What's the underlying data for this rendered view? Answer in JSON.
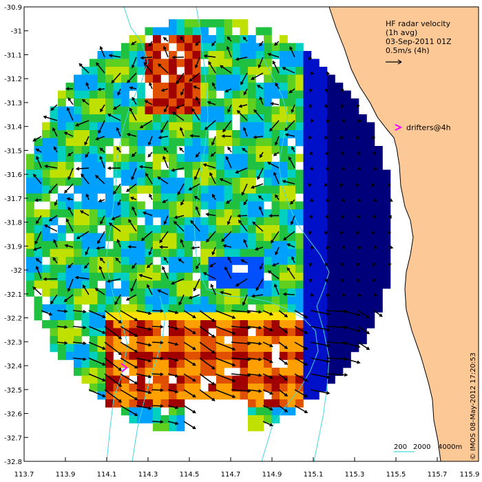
{
  "title_block": {
    "line1": "HF radar velocity",
    "line2": "(1h avg)",
    "line3": "03-Sep-2011 01Z",
    "line4": "0.5m/s (4h)"
  },
  "drifters_label": "drifters@4h",
  "depth_legend": {
    "label_200": "200",
    "label_2000": "2000",
    "label_4000": "4000m"
  },
  "credit": "© IMOS 08-May-2012 17:20:53",
  "axes": {
    "x_ticks": [
      "113.7",
      "113.9",
      "114.1",
      "114.3",
      "114.5",
      "114.7",
      "114.9",
      "115.1",
      "115.3",
      "115.5",
      "115.7",
      "115.9"
    ],
    "y_ticks": [
      "-30.9",
      "-31",
      "-31.1",
      "-31.2",
      "-31.3",
      "-31.4",
      "-31.5",
      "-31.6",
      "-31.7",
      "-31.8",
      "-31.9",
      "-32",
      "-32.1",
      "-32.2",
      "-32.3",
      "-32.4",
      "-32.5",
      "-32.6",
      "-32.7",
      "-32.8"
    ]
  },
  "colors": {
    "land": "#fcc896",
    "coast": "#000000",
    "bathymetry": "#40d8e0",
    "drifter": "#ff00ff",
    "speed_scale": [
      "#00007a",
      "#0010c8",
      "#0050ff",
      "#00a0ff",
      "#00d0c0",
      "#20c040",
      "#60d020",
      "#c0e000",
      "#ffe000",
      "#ffa000",
      "#e05000",
      "#a00000"
    ]
  }
}
